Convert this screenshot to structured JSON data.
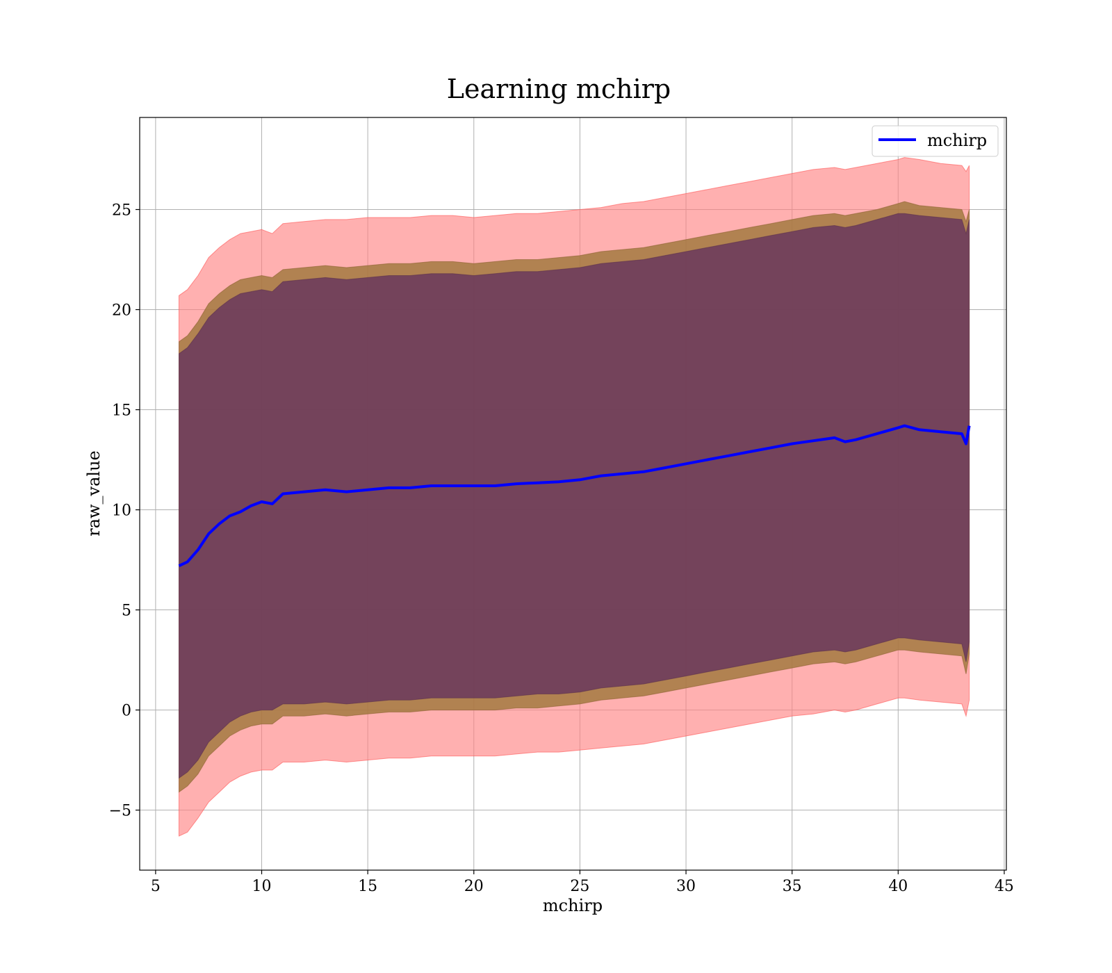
{
  "chart_data": {
    "type": "area",
    "title": "Learning mchirp",
    "xlabel": "mchirp",
    "ylabel": "raw_value",
    "xlim": [
      4.25,
      45.1
    ],
    "ylim": [
      -8.0,
      29.6
    ],
    "grid": true,
    "legend_position": "top-right",
    "x_ticks": [
      5,
      10,
      15,
      20,
      25,
      30,
      35,
      40,
      45
    ],
    "x_tick_labels": [
      "5",
      "10",
      "15",
      "20",
      "25",
      "30",
      "35",
      "40",
      "45"
    ],
    "y_ticks": [
      -5,
      0,
      5,
      10,
      15,
      20,
      25
    ],
    "y_tick_labels": [
      "−5",
      "0",
      "5",
      "10",
      "15",
      "20",
      "25"
    ],
    "colors": {
      "mean_line": "#0000ff",
      "band_outer": "#ff8080",
      "band_middle": "#a0783c",
      "band_inner": "#6b3a5c"
    },
    "x": [
      6.1,
      6.5,
      7.0,
      7.5,
      8.0,
      8.5,
      9.0,
      9.5,
      10.0,
      10.5,
      11.0,
      12.0,
      13.0,
      14.0,
      15.0,
      16.0,
      17.0,
      18.0,
      19.0,
      20.0,
      21.0,
      22.0,
      23.0,
      24.0,
      25.0,
      26.0,
      27.0,
      28.0,
      29.0,
      30.0,
      31.0,
      32.0,
      33.0,
      34.0,
      35.0,
      36.0,
      37.0,
      37.5,
      38.0,
      39.0,
      40.0,
      40.3,
      41.0,
      42.0,
      43.0,
      43.2,
      43.35
    ],
    "series": [
      {
        "name": "mchirp",
        "role": "line",
        "values": [
          7.2,
          7.4,
          8.0,
          8.8,
          9.3,
          9.7,
          9.9,
          10.2,
          10.4,
          10.3,
          10.8,
          10.9,
          11.0,
          10.9,
          11.0,
          11.1,
          11.1,
          11.2,
          11.2,
          11.2,
          11.2,
          11.3,
          11.35,
          11.4,
          11.5,
          11.7,
          11.8,
          11.9,
          12.1,
          12.3,
          12.5,
          12.7,
          12.9,
          13.1,
          13.3,
          13.45,
          13.6,
          13.4,
          13.5,
          13.8,
          14.1,
          14.2,
          14.0,
          13.9,
          13.8,
          13.3,
          14.2
        ]
      }
    ],
    "bands": [
      {
        "role": "outer",
        "upper": [
          20.7,
          21.0,
          21.7,
          22.6,
          23.1,
          23.5,
          23.8,
          23.9,
          24.0,
          23.8,
          24.3,
          24.4,
          24.5,
          24.5,
          24.6,
          24.6,
          24.6,
          24.7,
          24.7,
          24.6,
          24.7,
          24.8,
          24.8,
          24.9,
          25.0,
          25.1,
          25.3,
          25.4,
          25.6,
          25.8,
          26.0,
          26.2,
          26.4,
          26.6,
          26.8,
          27.0,
          27.1,
          27.0,
          27.1,
          27.3,
          27.5,
          27.6,
          27.5,
          27.3,
          27.2,
          26.9,
          27.2
        ],
        "lower": [
          -6.3,
          -6.1,
          -5.4,
          -4.6,
          -4.1,
          -3.6,
          -3.3,
          -3.1,
          -3.0,
          -3.0,
          -2.6,
          -2.6,
          -2.5,
          -2.6,
          -2.5,
          -2.4,
          -2.4,
          -2.3,
          -2.3,
          -2.3,
          -2.3,
          -2.2,
          -2.1,
          -2.1,
          -2.0,
          -1.9,
          -1.8,
          -1.7,
          -1.5,
          -1.3,
          -1.1,
          -0.9,
          -0.7,
          -0.5,
          -0.3,
          -0.2,
          0.0,
          -0.1,
          0.0,
          0.3,
          0.6,
          0.6,
          0.5,
          0.4,
          0.3,
          -0.3,
          0.5
        ]
      },
      {
        "role": "middle",
        "upper": [
          18.4,
          18.7,
          19.4,
          20.3,
          20.8,
          21.2,
          21.5,
          21.6,
          21.7,
          21.6,
          22.0,
          22.1,
          22.2,
          22.1,
          22.2,
          22.3,
          22.3,
          22.4,
          22.4,
          22.3,
          22.4,
          22.5,
          22.5,
          22.6,
          22.7,
          22.9,
          23.0,
          23.1,
          23.3,
          23.5,
          23.7,
          23.9,
          24.1,
          24.3,
          24.5,
          24.7,
          24.8,
          24.7,
          24.8,
          25.0,
          25.3,
          25.4,
          25.2,
          25.1,
          25.0,
          24.4,
          25.0
        ],
        "lower": [
          -4.1,
          -3.8,
          -3.2,
          -2.3,
          -1.8,
          -1.3,
          -1.0,
          -0.8,
          -0.7,
          -0.7,
          -0.3,
          -0.3,
          -0.2,
          -0.3,
          -0.2,
          -0.1,
          -0.1,
          0.0,
          0.0,
          0.0,
          0.0,
          0.1,
          0.1,
          0.2,
          0.3,
          0.5,
          0.6,
          0.7,
          0.9,
          1.1,
          1.3,
          1.5,
          1.7,
          1.9,
          2.1,
          2.3,
          2.4,
          2.3,
          2.4,
          2.7,
          3.0,
          3.0,
          2.9,
          2.8,
          2.7,
          1.8,
          2.8
        ]
      },
      {
        "role": "inner",
        "upper": [
          17.8,
          18.1,
          18.8,
          19.6,
          20.1,
          20.5,
          20.8,
          20.9,
          21.0,
          20.9,
          21.4,
          21.5,
          21.6,
          21.5,
          21.6,
          21.7,
          21.7,
          21.8,
          21.8,
          21.7,
          21.8,
          21.9,
          21.9,
          22.0,
          22.1,
          22.3,
          22.4,
          22.5,
          22.7,
          22.9,
          23.1,
          23.3,
          23.5,
          23.7,
          23.9,
          24.1,
          24.2,
          24.1,
          24.2,
          24.5,
          24.8,
          24.8,
          24.7,
          24.6,
          24.5,
          23.8,
          24.5
        ],
        "lower": [
          -3.4,
          -3.1,
          -2.5,
          -1.6,
          -1.1,
          -0.6,
          -0.3,
          -0.1,
          0.0,
          0.0,
          0.3,
          0.3,
          0.4,
          0.3,
          0.4,
          0.5,
          0.5,
          0.6,
          0.6,
          0.6,
          0.6,
          0.7,
          0.8,
          0.8,
          0.9,
          1.1,
          1.2,
          1.3,
          1.5,
          1.7,
          1.9,
          2.1,
          2.3,
          2.5,
          2.7,
          2.9,
          3.0,
          2.9,
          3.0,
          3.3,
          3.6,
          3.6,
          3.5,
          3.4,
          3.3,
          2.4,
          3.4
        ]
      }
    ]
  }
}
